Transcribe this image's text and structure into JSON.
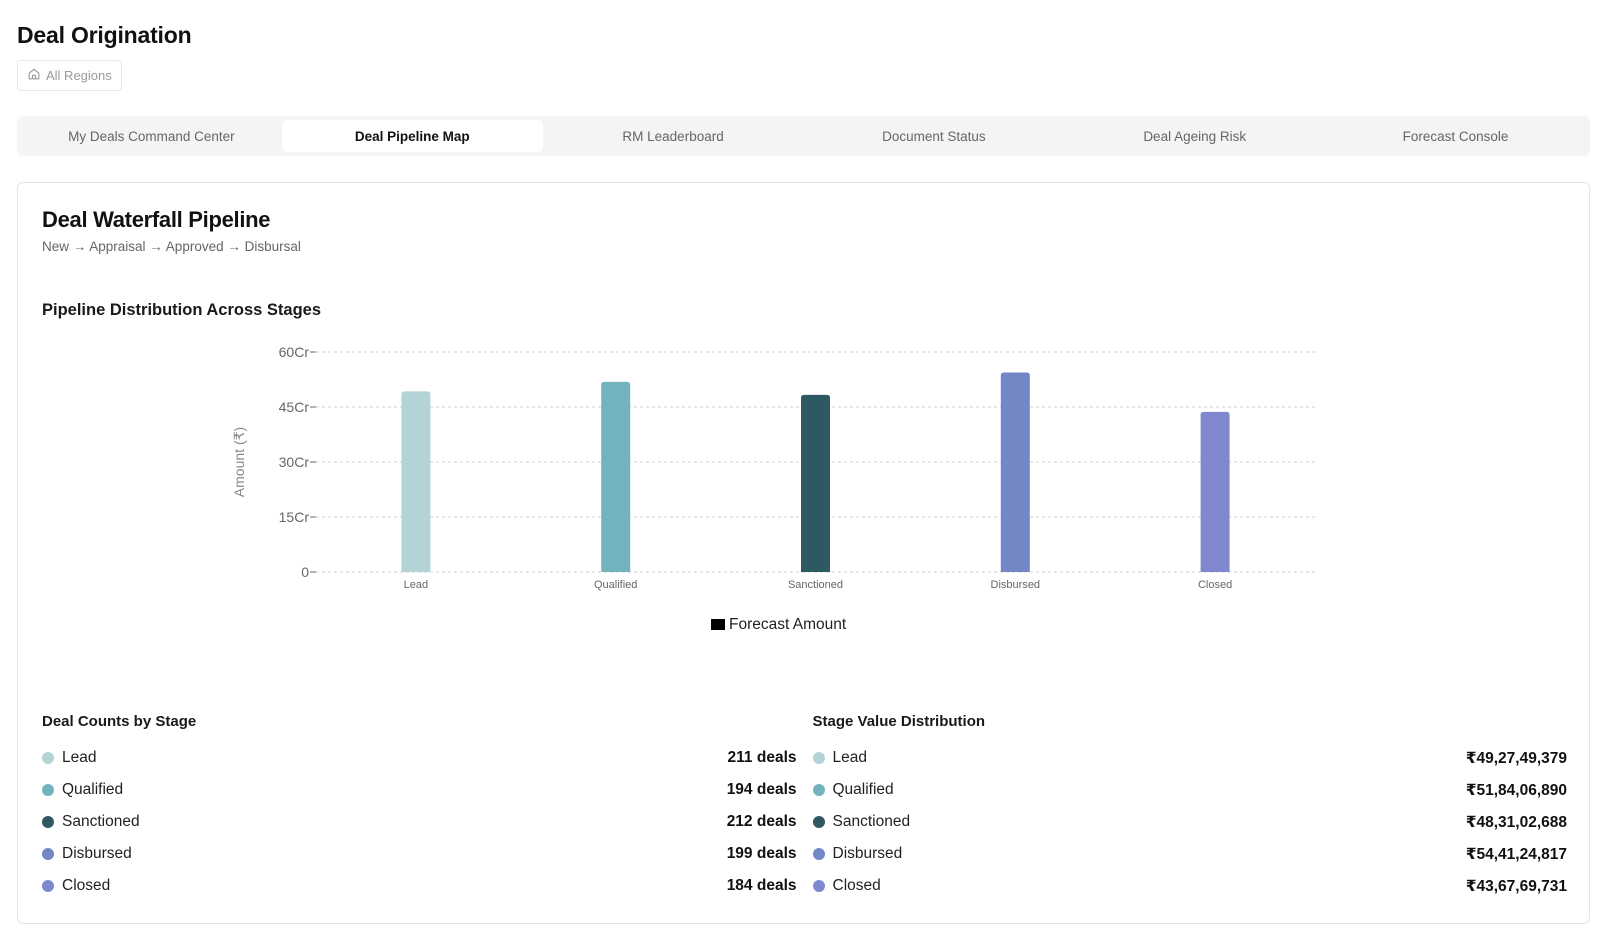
{
  "page": {
    "title": "Deal Origination"
  },
  "region_filter": {
    "label": "All Regions",
    "icon": "home-icon"
  },
  "tabs": [
    {
      "label": "My Deals Command Center",
      "active": false
    },
    {
      "label": "Deal Pipeline Map",
      "active": true
    },
    {
      "label": "RM Leaderboard",
      "active": false
    },
    {
      "label": "Document Status",
      "active": false
    },
    {
      "label": "Deal Ageing Risk",
      "active": false
    },
    {
      "label": "Forecast Console",
      "active": false
    }
  ],
  "card": {
    "title": "Deal Waterfall Pipeline",
    "subtitle": "New → Appraisal → Approved → Disbursal",
    "chart_title": "Pipeline Distribution Across Stages"
  },
  "chart_data": {
    "type": "bar",
    "categories": [
      "Lead",
      "Qualified",
      "Sanctioned",
      "Disbursed",
      "Closed"
    ],
    "series": [
      {
        "name": "Forecast Amount",
        "values": [
          49.27,
          51.84,
          48.31,
          54.41,
          43.68
        ]
      }
    ],
    "colors": [
      "#b3d3d6",
      "#73b3bd",
      "#2f5960",
      "#7386c5",
      "#7f88cf"
    ],
    "ylabel": "Amount (₹)",
    "ylim": [
      0,
      60
    ],
    "yticks": [
      0,
      15,
      30,
      45,
      60
    ],
    "ytick_labels": [
      "0",
      "15Cr",
      "30Cr",
      "45Cr",
      "60Cr"
    ],
    "grid": true,
    "legend": "bottom-center",
    "legend_swatch": "#000000"
  },
  "deal_counts": {
    "title": "Deal Counts by Stage",
    "items": [
      {
        "label": "Lead",
        "value": "211 deals",
        "color": "#b3d3d6"
      },
      {
        "label": "Qualified",
        "value": "194 deals",
        "color": "#73b3bd"
      },
      {
        "label": "Sanctioned",
        "value": "212 deals",
        "color": "#2f5960"
      },
      {
        "label": "Disbursed",
        "value": "199 deals",
        "color": "#7386c5"
      },
      {
        "label": "Closed",
        "value": "184 deals",
        "color": "#7f88cf"
      }
    ]
  },
  "stage_values": {
    "title": "Stage Value Distribution",
    "items": [
      {
        "label": "Lead",
        "value": "₹49,27,49,379",
        "color": "#b3d3d6"
      },
      {
        "label": "Qualified",
        "value": "₹51,84,06,890",
        "color": "#73b3bd"
      },
      {
        "label": "Sanctioned",
        "value": "₹48,31,02,688",
        "color": "#2f5960"
      },
      {
        "label": "Disbursed",
        "value": "₹54,41,24,817",
        "color": "#7386c5"
      },
      {
        "label": "Closed",
        "value": "₹43,67,69,731",
        "color": "#7f88cf"
      }
    ]
  }
}
